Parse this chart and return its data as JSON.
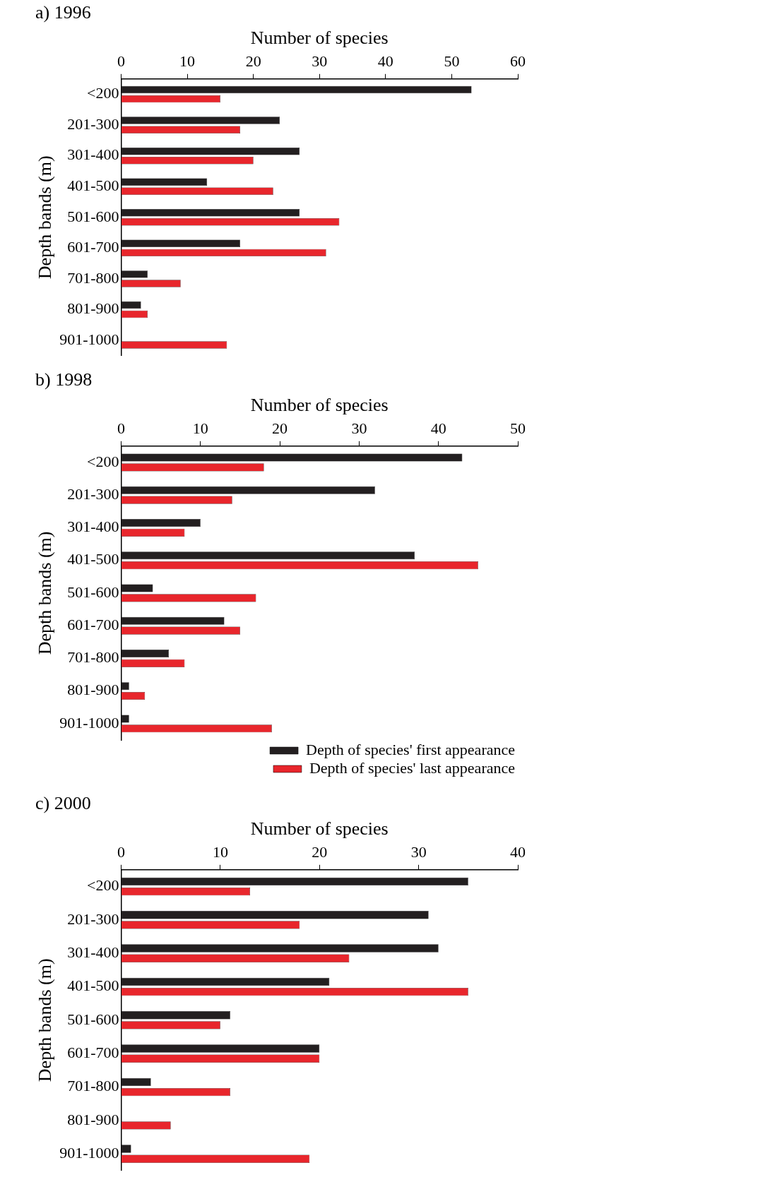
{
  "chart_data": [
    {
      "type": "bar",
      "orientation": "horizontal",
      "title": "a) 1996",
      "xlabel": "Number of species",
      "ylabel": "Depth bands (m)",
      "categories": [
        "<200",
        "201-300",
        "301-400",
        "401-500",
        "501-600",
        "601-700",
        "701-800",
        "801-900",
        "901-1000"
      ],
      "xlim": [
        0,
        60
      ],
      "xticks": [
        0,
        10,
        20,
        30,
        40,
        50,
        60
      ],
      "grid": false,
      "legend": false,
      "series": [
        {
          "color": "#231f20",
          "values": [
            53,
            24,
            27,
            13,
            27,
            18,
            4,
            3,
            0
          ]
        },
        {
          "color": "#e8262c",
          "values": [
            15,
            18,
            20,
            23,
            33,
            31,
            9,
            4,
            16
          ]
        }
      ]
    },
    {
      "type": "bar",
      "orientation": "horizontal",
      "title": "b) 1998",
      "xlabel": "Number of species",
      "ylabel": "Depth bands (m)",
      "categories": [
        "<200",
        "201-300",
        "301-400",
        "401-500",
        "501-600",
        "601-700",
        "701-800",
        "801-900",
        "901-1000"
      ],
      "xlim": [
        0,
        50
      ],
      "xticks": [
        0,
        10,
        20,
        30,
        40,
        50
      ],
      "grid": false,
      "legend": "bottom right",
      "series": [
        {
          "name": "Depth of species' first appearance",
          "color": "#231f20",
          "values": [
            43,
            32,
            10,
            37,
            4,
            13,
            6,
            1,
            1
          ]
        },
        {
          "name": "Depth of species' last appearance",
          "color": "#e8262c",
          "values": [
            18,
            14,
            8,
            45,
            17,
            15,
            8,
            3,
            19
          ]
        }
      ]
    },
    {
      "type": "bar",
      "orientation": "horizontal",
      "title": "c) 2000",
      "xlabel": "Number of species",
      "ylabel": "Depth bands (m)",
      "categories": [
        "<200",
        "201-300",
        "301-400",
        "401-500",
        "501-600",
        "601-700",
        "701-800",
        "801-900",
        "901-1000"
      ],
      "xlim": [
        0,
        40
      ],
      "xticks": [
        0,
        10,
        20,
        30,
        40
      ],
      "grid": false,
      "legend": false,
      "series": [
        {
          "color": "#231f20",
          "values": [
            35,
            31,
            32,
            21,
            11,
            20,
            3,
            0,
            1
          ]
        },
        {
          "color": "#e8262c",
          "values": [
            13,
            18,
            23,
            35,
            10,
            20,
            11,
            5,
            19
          ]
        }
      ]
    }
  ]
}
